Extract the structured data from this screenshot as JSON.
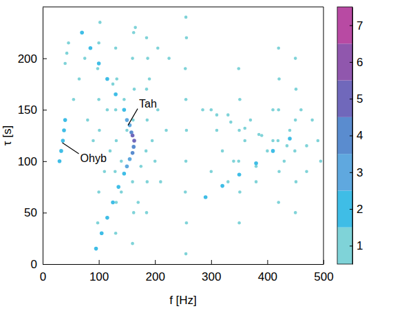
{
  "chart_data": {
    "type": "scatter",
    "xlabel": "f [Hz]",
    "ylabel": "τ [s]",
    "xlim": [
      0,
      500
    ],
    "ylim": [
      0,
      250
    ],
    "xticks": [
      0,
      100,
      200,
      300,
      400,
      500
    ],
    "yticks": [
      0,
      50,
      100,
      150,
      200
    ],
    "colorbar": {
      "range": [
        0.5,
        7.5
      ],
      "ticks": [
        1,
        2,
        3,
        4,
        5,
        6,
        7
      ]
    },
    "series": [
      {
        "level": 1,
        "x": [
          98,
          100,
          99,
          101,
          100,
          98,
          100,
          102,
          130,
          131,
          129,
          131,
          130,
          132,
          130,
          160,
          162,
          160,
          161,
          163,
          160,
          162,
          185,
          186,
          184,
          186,
          185,
          187,
          255,
          256,
          254,
          255,
          256,
          255,
          254,
          256,
          255,
          350,
          351,
          349,
          350,
          351,
          349,
          420,
          421,
          419,
          420,
          421,
          420,
          450,
          451,
          449,
          450,
          451,
          450,
          110,
          120,
          140,
          150,
          115,
          145,
          175,
          195,
          205,
          90,
          80,
          170,
          140,
          200,
          210,
          125,
          190,
          220,
          300,
          320,
          340,
          360,
          380,
          400,
          430,
          470,
          490,
          310,
          330,
          370,
          390,
          410,
          440,
          460,
          480,
          495,
          300,
          380,
          470,
          330,
          165,
          185,
          205,
          225,
          285,
          310,
          335,
          360,
          385,
          410,
          435,
          40,
          43,
          46,
          55,
          65,
          75
        ],
        "values": [
          40,
          70,
          100,
          130,
          160,
          190,
          215,
          235,
          30,
          60,
          90,
          120,
          150,
          180,
          210,
          20,
          50,
          80,
          140,
          170,
          200,
          225,
          50,
          80,
          110,
          140,
          170,
          200,
          10,
          40,
          70,
          100,
          130,
          160,
          190,
          220,
          240,
          40,
          70,
          100,
          130,
          160,
          190,
          60,
          90,
          120,
          150,
          180,
          210,
          50,
          80,
          110,
          140,
          170,
          200,
          90,
          110,
          100,
          130,
          150,
          160,
          95,
          120,
          150,
          120,
          140,
          60,
          70,
          100,
          80,
          175,
          180,
          130,
          90,
          110,
          100,
          120,
          95,
          110,
          100,
          115,
          120,
          130,
          145,
          140,
          125,
          150,
          130,
          150,
          140,
          100,
          150,
          80,
          90,
          80,
          230,
          220,
          210,
          200,
          150,
          145,
          138,
          132,
          126,
          120,
          115,
          195,
          205,
          215,
          160,
          180,
          200
        ]
      },
      {
        "level": 2,
        "x": [
          70,
          85,
          100,
          115,
          130,
          145,
          95,
          105,
          115,
          125,
          135,
          145,
          290,
          320,
          350,
          380,
          410,
          440,
          30,
          33,
          36,
          38,
          40
        ],
        "values": [
          225,
          210,
          195,
          180,
          165,
          150,
          15,
          30,
          45,
          60,
          75,
          88,
          65,
          76,
          87,
          98,
          110,
          122,
          100,
          110,
          120,
          130,
          140
        ]
      },
      {
        "level": 3,
        "x": [
          150,
          155,
          150,
          155
        ],
        "values": [
          140,
          135,
          95,
          102
        ]
      },
      {
        "level": 4,
        "x": [
          158,
          160,
          162
        ],
        "values": [
          128,
          108,
          114
        ]
      },
      {
        "level": 5,
        "x": [
          163,
          160
        ],
        "values": [
          120,
          125
        ]
      }
    ],
    "annotations": [
      {
        "text": "Tah",
        "x": 152,
        "y": 135
      },
      {
        "text": "Ohyb",
        "x": 35,
        "y": 118
      }
    ]
  }
}
